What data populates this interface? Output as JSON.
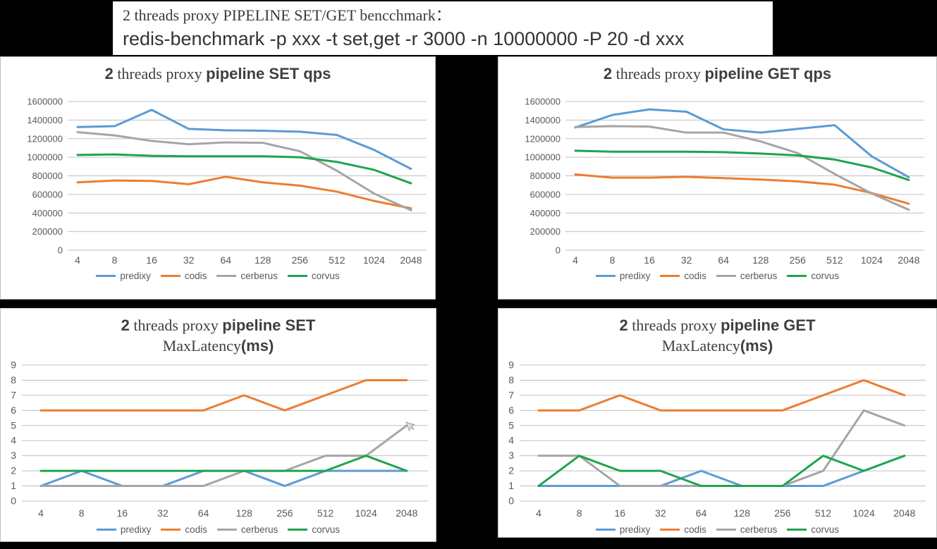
{
  "header": {
    "line1": "2 threads proxy PIPELINE SET/GET bencchmark：",
    "line2": "redis-benchmark -p xxx -t set,get -r 3000 -n 10000000 -P 20 -d xxx"
  },
  "series_colors": {
    "predixy": "#5B9BD5",
    "codis": "#ED7D31",
    "cerberus": "#A5A5A5",
    "corvus": "#1FA44C"
  },
  "chart_data": [
    {
      "id": "pipeline-set-qps",
      "type": "line",
      "title": "2 threads proxy pipeline SET qps",
      "title_parts": {
        "num": "2",
        "mid": " threads proxy ",
        "bold": "pipeline SET qps"
      },
      "xlabel": "",
      "ylabel": "",
      "ylim": [
        0,
        1600000
      ],
      "ystep": 200000,
      "y_ticks": [
        "0",
        "200000",
        "400000",
        "600000",
        "800000",
        "1000000",
        "1200000",
        "1400000",
        "1600000"
      ],
      "categories": [
        "4",
        "8",
        "16",
        "32",
        "64",
        "128",
        "256",
        "512",
        "1024",
        "2048"
      ],
      "grid": true,
      "legend_position": "bottom",
      "series": [
        {
          "name": "predixy",
          "color": "#5B9BD5",
          "values": [
            1325000,
            1335000,
            1510000,
            1305000,
            1290000,
            1285000,
            1275000,
            1240000,
            1080000,
            875000
          ]
        },
        {
          "name": "codis",
          "color": "#ED7D31",
          "values": [
            730000,
            750000,
            745000,
            710000,
            790000,
            730000,
            695000,
            630000,
            530000,
            450000
          ]
        },
        {
          "name": "cerberus",
          "color": "#A5A5A5",
          "values": [
            1270000,
            1235000,
            1175000,
            1140000,
            1160000,
            1155000,
            1065000,
            855000,
            610000,
            430000
          ]
        },
        {
          "name": "corvus",
          "color": "#1FA44C",
          "values": [
            1025000,
            1030000,
            1015000,
            1010000,
            1010000,
            1010000,
            1000000,
            950000,
            865000,
            720000
          ]
        }
      ]
    },
    {
      "id": "pipeline-get-qps",
      "type": "line",
      "title": "2 threads proxy pipeline GET qps",
      "title_parts": {
        "num": "2",
        "mid": " threads proxy ",
        "bold": "pipeline GET qps"
      },
      "xlabel": "",
      "ylabel": "",
      "ylim": [
        0,
        1600000
      ],
      "ystep": 200000,
      "y_ticks": [
        "0",
        "200000",
        "400000",
        "600000",
        "800000",
        "1000000",
        "1200000",
        "1400000",
        "1600000"
      ],
      "categories": [
        "4",
        "8",
        "16",
        "32",
        "64",
        "128",
        "256",
        "512",
        "1024",
        "2048"
      ],
      "grid": true,
      "legend_position": "bottom",
      "series": [
        {
          "name": "predixy",
          "color": "#5B9BD5",
          "values": [
            1320000,
            1455000,
            1515000,
            1490000,
            1300000,
            1265000,
            1305000,
            1345000,
            1010000,
            785000
          ]
        },
        {
          "name": "codis",
          "color": "#ED7D31",
          "values": [
            815000,
            780000,
            780000,
            790000,
            775000,
            760000,
            740000,
            705000,
            615000,
            500000
          ]
        },
        {
          "name": "cerberus",
          "color": "#A5A5A5",
          "values": [
            1325000,
            1335000,
            1330000,
            1265000,
            1265000,
            1170000,
            1045000,
            820000,
            610000,
            435000
          ]
        },
        {
          "name": "corvus",
          "color": "#1FA44C",
          "values": [
            1070000,
            1060000,
            1060000,
            1060000,
            1055000,
            1040000,
            1020000,
            975000,
            890000,
            755000
          ]
        }
      ]
    },
    {
      "id": "pipeline-set-maxlatency",
      "type": "line",
      "title": "2 threads proxy pipeline SET MaxLatency(ms)",
      "title_parts": {
        "num": "2",
        "mid": " threads proxy ",
        "bold": "pipeline SET",
        "line2_serif": "MaxLatency",
        "line2_bold": "(ms)"
      },
      "xlabel": "",
      "ylabel": "",
      "ylim": [
        0,
        9
      ],
      "ystep": 1,
      "y_ticks": [
        "0",
        "1",
        "2",
        "3",
        "4",
        "5",
        "6",
        "7",
        "8",
        "9"
      ],
      "categories": [
        "4",
        "8",
        "16",
        "32",
        "64",
        "128",
        "256",
        "512",
        "1024",
        "2048"
      ],
      "grid": true,
      "legend_position": "bottom",
      "series": [
        {
          "name": "predixy",
          "color": "#5B9BD5",
          "values": [
            1,
            2,
            1,
            1,
            2,
            2,
            1,
            2,
            2,
            2
          ]
        },
        {
          "name": "codis",
          "color": "#ED7D31",
          "values": [
            6,
            6,
            6,
            6,
            6,
            7,
            6,
            7,
            8,
            8
          ]
        },
        {
          "name": "cerberus",
          "color": "#A5A5A5",
          "values": [
            1,
            1,
            1,
            1,
            1,
            2,
            2,
            3,
            3,
            5
          ]
        },
        {
          "name": "corvus",
          "color": "#1FA44C",
          "values": [
            2,
            2,
            2,
            2,
            2,
            2,
            2,
            2,
            3,
            2
          ]
        }
      ]
    },
    {
      "id": "pipeline-get-maxlatency",
      "type": "line",
      "title": "2 threads proxy pipeline GET MaxLatency(ms)",
      "title_parts": {
        "num": "2",
        "mid": " threads proxy ",
        "bold": "pipeline GET",
        "line2_serif": "MaxLatency",
        "line2_bold": "(ms)"
      },
      "xlabel": "",
      "ylabel": "",
      "ylim": [
        0,
        9
      ],
      "ystep": 1,
      "y_ticks": [
        "0",
        "1",
        "2",
        "3",
        "4",
        "5",
        "6",
        "7",
        "8",
        "9"
      ],
      "categories": [
        "4",
        "8",
        "16",
        "32",
        "64",
        "128",
        "256",
        "512",
        "1024",
        "2048"
      ],
      "grid": true,
      "legend_position": "bottom",
      "series": [
        {
          "name": "predixy",
          "color": "#5B9BD5",
          "values": [
            1,
            1,
            1,
            1,
            2,
            1,
            1,
            1,
            2,
            3
          ]
        },
        {
          "name": "codis",
          "color": "#ED7D31",
          "values": [
            6,
            6,
            7,
            6,
            6,
            6,
            6,
            7,
            8,
            7
          ]
        },
        {
          "name": "cerberus",
          "color": "#A5A5A5",
          "values": [
            3,
            3,
            1,
            1,
            1,
            1,
            1,
            2,
            6,
            5
          ]
        },
        {
          "name": "corvus",
          "color": "#1FA44C",
          "values": [
            1,
            3,
            2,
            2,
            1,
            1,
            1,
            3,
            2,
            3
          ]
        }
      ]
    }
  ]
}
